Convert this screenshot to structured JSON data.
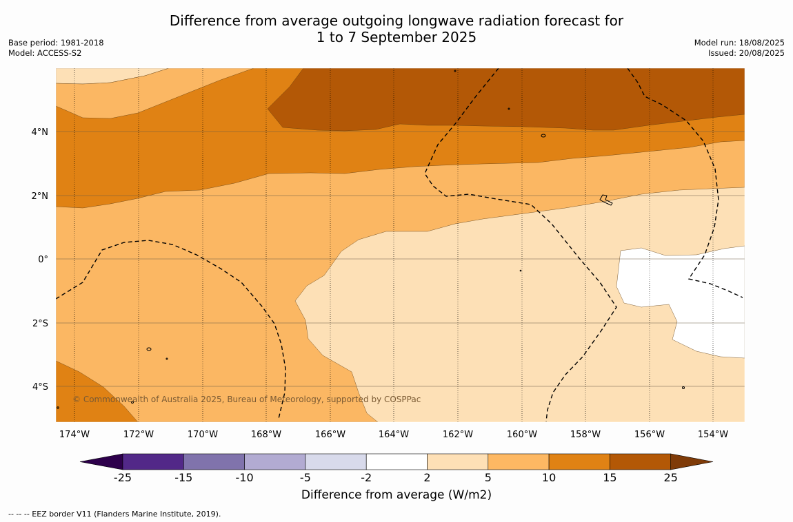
{
  "title_line1": "Difference from average outgoing longwave radiation forecast for",
  "title_line2": "1 to 7 September 2025",
  "base_period": "Base period: 1981-2018",
  "model": "Model: ACCESS-S2",
  "model_run": "Model run: 18/08/2025",
  "issued": "Issued: 20/08/2025",
  "copyright": "© Commonwealth of Australia 2025, Bureau of Meteorology, supported by COSPPac",
  "colorbar_title": "Difference from average (W/m2)",
  "footer": "--  --  -- EEZ border V11 (Flanders Marine Institute, 2019).",
  "lon_labels": [
    "174°W",
    "172°W",
    "170°W",
    "168°W",
    "166°W",
    "164°W",
    "162°W",
    "160°W",
    "158°W",
    "156°W",
    "154°W"
  ],
  "lat_labels": [
    "4°N",
    "2°N",
    "0°",
    "2°S",
    "4°S"
  ],
  "colorbar": {
    "ticks": [
      "-25",
      "-15",
      "-10",
      "-5",
      "-2",
      "2",
      "5",
      "10",
      "15",
      "25"
    ],
    "colors": [
      "#522888",
      "#8073ac",
      "#b2abd2",
      "#d8daeb",
      "#ffffff",
      "#fee0b6",
      "#fdb863",
      "#e08214",
      "#b35806"
    ],
    "under_color": "#2d004b",
    "over_color": "#7f3b08"
  },
  "palette": {
    "c2_5": "#fde0b6",
    "c5_10": "#fbb763",
    "c10_15": "#e08214",
    "c15_25": "#b35806",
    "neutral": "#ffffff"
  }
}
